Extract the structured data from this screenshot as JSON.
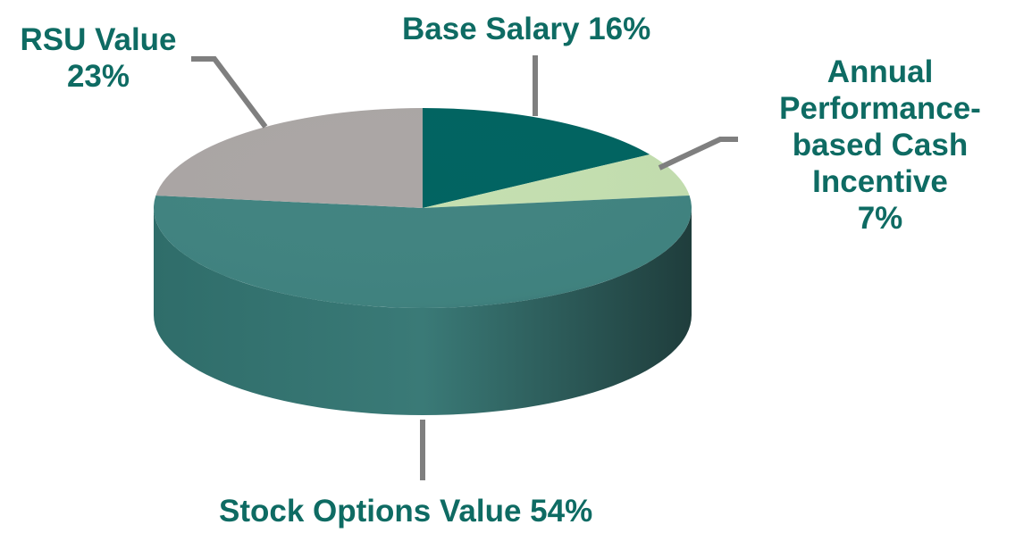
{
  "chart_data": {
    "type": "pie",
    "title": "",
    "slices": [
      {
        "name": "Base Salary",
        "value": 16,
        "label": "Base Salary 16%",
        "color": "#016461"
      },
      {
        "name": "Annual Performance-based Cash Incentive",
        "value": 7,
        "label_lines": [
          "Annual",
          "Performance-",
          "based Cash",
          "Incentive",
          "7%"
        ],
        "color": "#c4dfb0"
      },
      {
        "name": "Stock Options Value",
        "value": 54,
        "label": "Stock Options Value 54%",
        "color": "#418481"
      },
      {
        "name": "RSU Value",
        "value": 23,
        "label_lines": [
          "RSU Value",
          "23%"
        ],
        "color": "#aba6a5"
      }
    ],
    "label_color": "#0e6b63",
    "leader_line_color": "#7f7f7f",
    "style": "3d-tilted",
    "legend": "none"
  }
}
